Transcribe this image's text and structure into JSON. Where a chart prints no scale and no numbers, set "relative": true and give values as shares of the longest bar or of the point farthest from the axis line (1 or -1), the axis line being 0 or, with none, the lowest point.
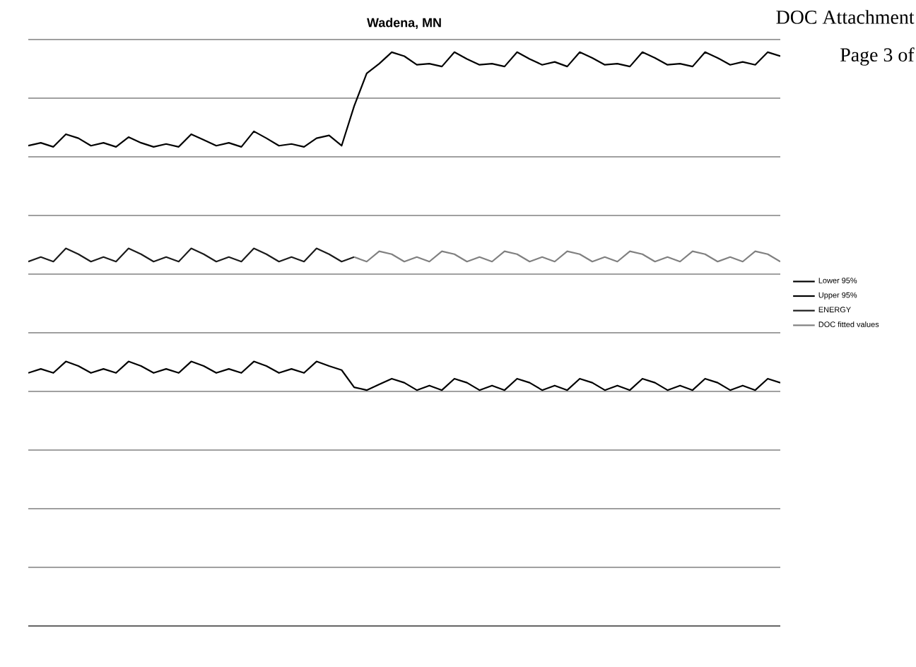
{
  "chart_data": {
    "type": "line",
    "title": "Wadena, MN",
    "relative": true,
    "grid": "y",
    "legend": "right",
    "categories": [
      null,
      null,
      null,
      null,
      null,
      null,
      null,
      null,
      null,
      null,
      null,
      null,
      null,
      null,
      null,
      null,
      null,
      null,
      null,
      null,
      null,
      null,
      null,
      null,
      null,
      null,
      null,
      null,
      null,
      null,
      null,
      null,
      null,
      null,
      null,
      null,
      null,
      null,
      null,
      null,
      null,
      null,
      null,
      null,
      null,
      null,
      null,
      null,
      null,
      null,
      null,
      null,
      null,
      null,
      null,
      null,
      null,
      null,
      null,
      null,
      null
    ],
    "annotations": [
      "DOC Attachment",
      "Page 3 of"
    ],
    "series": [
      {
        "name": "Lower 95%",
        "color": "#000000",
        "values": [
          0.441,
          0.448,
          0.441,
          0.461,
          0.453,
          0.441,
          0.448,
          0.441,
          0.461,
          0.453,
          0.441,
          0.448,
          0.441,
          0.461,
          0.453,
          0.441,
          0.448,
          0.441,
          0.461,
          0.453,
          0.441,
          0.448,
          0.441,
          0.461,
          0.453,
          0.446,
          0.416,
          0.411,
          0.421,
          0.431,
          0.424,
          0.411,
          0.419,
          0.411,
          0.431,
          0.424,
          0.411,
          0.419,
          0.411,
          0.431,
          0.424,
          0.411,
          0.419,
          0.411,
          0.431,
          0.424,
          0.411,
          0.419,
          0.411,
          0.431,
          0.424,
          0.411,
          0.419,
          0.411,
          0.431,
          0.424,
          0.411,
          0.419,
          0.411,
          0.431,
          0.424
        ]
      },
      {
        "name": "Upper 95%",
        "color": "#000000",
        "values": [
          0.837,
          0.842,
          0.835,
          0.857,
          0.85,
          0.837,
          0.842,
          0.835,
          0.852,
          0.842,
          0.835,
          0.84,
          0.835,
          0.857,
          0.847,
          0.837,
          0.842,
          0.835,
          0.862,
          0.85,
          0.837,
          0.84,
          0.835,
          0.85,
          0.855,
          0.837,
          0.906,
          0.963,
          0.98,
          1,
          0.993,
          0.978,
          0.98,
          0.975,
          1,
          0.988,
          0.978,
          0.98,
          0.975,
          1,
          0.988,
          0.978,
          0.983,
          0.975,
          1,
          0.99,
          0.978,
          0.98,
          0.975,
          1,
          0.99,
          0.978,
          0.98,
          0.975,
          1,
          0.99,
          0.978,
          0.983,
          0.978,
          1,
          0.993
        ]
      },
      {
        "name": "ENERGY",
        "color": "#1a1a1a",
        "values": [
          0.635,
          0.643,
          0.635,
          0.658,
          0.648,
          0.635,
          0.643,
          0.635,
          0.658,
          0.648,
          0.635,
          0.643,
          0.635,
          0.658,
          0.648,
          0.635,
          0.643,
          0.635,
          0.658,
          0.648,
          0.635,
          0.643,
          0.635,
          0.658,
          0.648,
          0.635,
          0.643,
          null,
          null,
          null,
          null,
          null,
          null,
          null,
          null,
          null,
          null,
          null,
          null,
          null,
          null,
          null,
          null,
          null,
          null,
          null,
          null,
          null,
          null,
          null,
          null,
          null,
          null,
          null,
          null,
          null,
          null,
          null,
          null,
          null,
          null
        ]
      },
      {
        "name": "DOC fitted values",
        "color": "#808080",
        "values": [
          null,
          null,
          null,
          null,
          null,
          null,
          null,
          null,
          null,
          null,
          null,
          null,
          null,
          null,
          null,
          null,
          null,
          null,
          null,
          null,
          null,
          null,
          null,
          null,
          null,
          null,
          0.643,
          0.635,
          0.653,
          0.648,
          0.635,
          0.643,
          0.635,
          0.653,
          0.648,
          0.635,
          0.643,
          0.635,
          0.653,
          0.648,
          0.635,
          0.643,
          0.635,
          0.653,
          0.648,
          0.635,
          0.643,
          0.635,
          0.653,
          0.648,
          0.635,
          0.643,
          0.635,
          0.653,
          0.648,
          0.635,
          0.643,
          0.635,
          0.653,
          0.648,
          0.635
        ]
      }
    ]
  }
}
